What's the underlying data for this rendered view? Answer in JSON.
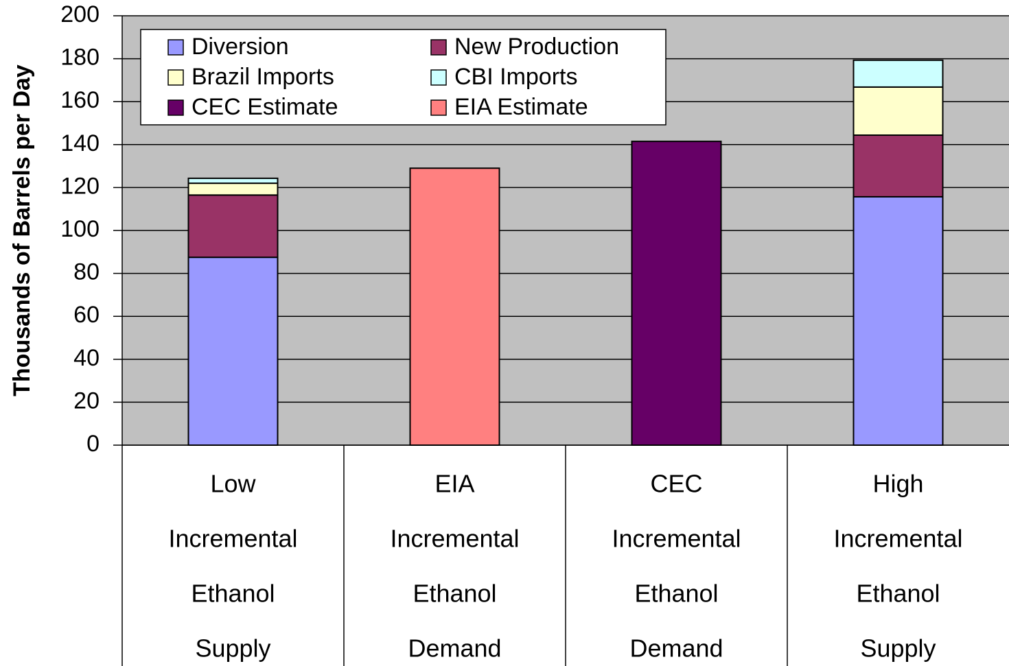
{
  "chart_data": {
    "type": "stacked-bar",
    "y_label": "Thousands of Barrels per Day",
    "categories": [
      [
        "Low",
        "Incremental",
        "Ethanol",
        "Supply"
      ],
      [
        "EIA",
        "Incremental",
        "Ethanol",
        "Demand"
      ],
      [
        "CEC",
        "Incremental",
        "Ethanol",
        "Demand"
      ],
      [
        "High",
        "Incremental",
        "Ethanol",
        "Supply"
      ]
    ],
    "series": [
      {
        "name": "Diversion",
        "color": "#9999ff",
        "values": [
          87.5,
          null,
          null,
          115.7
        ]
      },
      {
        "name": "New Production",
        "color": "#993366",
        "values": [
          29,
          null,
          null,
          28.7
        ]
      },
      {
        "name": "Brazil Imports",
        "color": "#ffffcc",
        "values": [
          5.5,
          null,
          null,
          22.4
        ]
      },
      {
        "name": "CBI Imports",
        "color": "#ccffff",
        "values": [
          2.3,
          null,
          null,
          12.5
        ]
      },
      {
        "name": "CEC Estimate",
        "color": "#660066",
        "values": [
          null,
          null,
          141.5,
          null
        ]
      },
      {
        "name": "EIA Estimate",
        "color": "#ff8080",
        "values": [
          null,
          129,
          null,
          null
        ]
      }
    ],
    "ylim": [
      0,
      200
    ],
    "yticks": [
      0,
      20,
      40,
      60,
      80,
      100,
      120,
      140,
      160,
      180,
      200
    ],
    "grid": true,
    "plot_background": "#c0c0c0",
    "legend": "top-left"
  }
}
